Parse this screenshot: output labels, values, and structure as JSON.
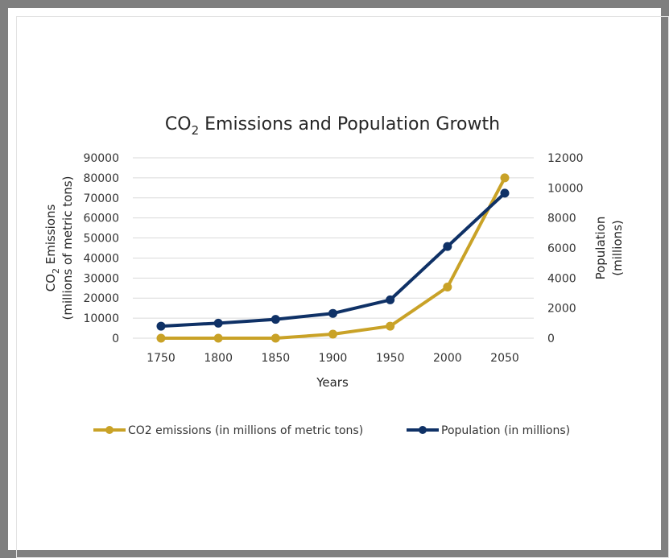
{
  "chart_data": {
    "type": "line",
    "title": {
      "pre": "CO",
      "sub": "2",
      "post": " Emissions and Population Growth"
    },
    "x": [
      "1750",
      "1800",
      "1850",
      "1900",
      "1950",
      "2000",
      "2050"
    ],
    "xlabel": "Years",
    "y_left": {
      "label_line1_pre": "CO",
      "label_line1_sub": "2",
      "label_line1_post": " Emissions",
      "label_line2": "(millions of metric tons)",
      "range": [
        0,
        90000
      ],
      "ticks": [
        "0",
        "10000",
        "20000",
        "30000",
        "40000",
        "50000",
        "60000",
        "70000",
        "80000",
        "90000"
      ]
    },
    "y_right": {
      "label_line1": "Population",
      "label_line2": "(millions)",
      "range": [
        0,
        12000
      ],
      "ticks": [
        "0",
        "2000",
        "4000",
        "6000",
        "8000",
        "10000",
        "12000"
      ]
    },
    "grid": true,
    "legend_position": "bottom",
    "series": [
      {
        "name": "CO2 emissions (in millions of metric tons)",
        "axis": "left",
        "color": "#c9a227",
        "values": [
          0,
          0,
          0,
          2000,
          6000,
          25500,
          80000
        ]
      },
      {
        "name": "Population (in millions)",
        "axis": "right",
        "color": "#0f3166",
        "values": [
          800,
          1000,
          1250,
          1650,
          2550,
          6100,
          9650
        ]
      }
    ]
  }
}
